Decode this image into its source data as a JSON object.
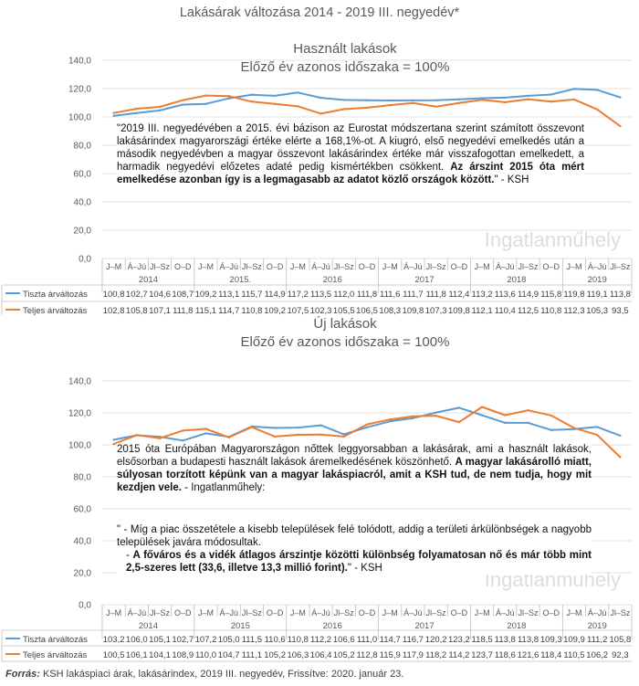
{
  "page_title": "Lakásárak változása 2014 - 2019 III. negyedév*",
  "source": {
    "label": "Forrás:",
    "text": " KSH lakáspiaci árak, lakásárindex, 2019 III. negyedév, Frissítve: 2020. január 23."
  },
  "watermark": "Ingatlanműhely",
  "colors": {
    "tiszta": "#5b9bd5",
    "teljes": "#ed7d31",
    "grid": "#d9d9d9",
    "text": "#595959"
  },
  "chart_data": [
    {
      "type": "line",
      "title": "Használt lakások",
      "subtitle": "Előző év azonos időszaka = 100%",
      "ylim": [
        0,
        140
      ],
      "yticks": [
        "0,0",
        "20,0",
        "40,0",
        "60,0",
        "80,0",
        "100,0",
        "120,0",
        "140,0"
      ],
      "grid": true,
      "legend": "table-left",
      "categories": [
        "J–M",
        "Á–Jú",
        "Jl–Sz",
        "O–D",
        "J–M",
        "Á–Jú",
        "Jl–Sz",
        "O–D",
        "J–M",
        "Á–Jú",
        "Jl–Sz",
        "O–D",
        "J–M",
        "Á–Jú",
        "Jl–Sz",
        "O–D",
        "J–M",
        "Á–Jú",
        "Jl–Sz",
        "O–D",
        "J–M",
        "Á–Jú",
        "Jl–Sz"
      ],
      "years": [
        "2014",
        "2015.",
        "2016",
        "2017",
        "2018",
        "2019"
      ],
      "series": [
        {
          "name": "Tiszta árváltozás",
          "values": [
            100.8,
            102.7,
            104.6,
            108.7,
            109.2,
            113.1,
            115.7,
            114.9,
            117.2,
            113.5,
            112.0,
            111.8,
            111.6,
            111.7,
            111.8,
            112.4,
            113.2,
            113.6,
            114.9,
            115.8,
            119.8,
            119.1,
            113.8
          ],
          "labels": [
            "100,8",
            "102,7",
            "104,6",
            "108,7",
            "109,2",
            "113,1",
            "115,7",
            "114,9",
            "117,2",
            "113,5",
            "112,0",
            "111,8",
            "111,6",
            "111,7",
            "111,8",
            "112,4",
            "113,2",
            "113,6",
            "114,9",
            "115,8",
            "119,8",
            "119,1",
            "113,8"
          ]
        },
        {
          "name": "Teljes árváltozás",
          "values": [
            102.8,
            105.8,
            107.1,
            111.8,
            115.1,
            114.7,
            110.8,
            109.2,
            107.5,
            102.3,
            105.5,
            106.5,
            108.3,
            109.8,
            107.3,
            109.8,
            112.1,
            110.4,
            112.5,
            110.8,
            112.3,
            105.3,
            93.5
          ],
          "labels": [
            "102,8",
            "105,8",
            "107,1",
            "111,8",
            "115,1",
            "114,7",
            "110,8",
            "109,2",
            "107,5",
            "102,3",
            "105,5",
            "106,5",
            "108,3",
            "109,8",
            "107,3",
            "109,8",
            "112,1",
            "110,4",
            "112,5",
            "110,8",
            "112,3",
            "105,3",
            "93,5"
          ]
        }
      ]
    },
    {
      "type": "line",
      "title": "Új lakások",
      "subtitle": "Előző év azonos időszaka = 100%",
      "ylim": [
        0,
        140
      ],
      "yticks": [
        "0,0",
        "20,0",
        "40,0",
        "60,0",
        "80,0",
        "100,0",
        "120,0",
        "140,0"
      ],
      "grid": true,
      "legend": "table-left",
      "categories": [
        "J–M",
        "Á–Jú",
        "Jl–Sz",
        "O–D",
        "J–M",
        "Á–Jú",
        "Jl–Sz",
        "O–D",
        "J–M",
        "Á–Jú",
        "Jl–Sz",
        "O–D",
        "J–M",
        "Á–Jú",
        "Jl–Sz",
        "O–D",
        "J–M",
        "Á–Jú",
        "Jl–Sz",
        "O–D",
        "J–M",
        "Á–Jú",
        "Jl–Sz"
      ],
      "years": [
        "2014",
        "2015",
        "2016",
        "2017",
        "2018",
        "2019"
      ],
      "series": [
        {
          "name": "Tiszta árváltozás",
          "values": [
            103.2,
            106.0,
            105.1,
            102.7,
            107.2,
            105.0,
            111.5,
            110.6,
            110.8,
            112.2,
            106.6,
            111.0,
            114.7,
            116.7,
            120.2,
            123.2,
            118.5,
            113.8,
            113.8,
            109.3,
            109.9,
            111.2,
            105.8
          ],
          "labels": [
            "103,2",
            "106,0",
            "105,1",
            "102,7",
            "107,2",
            "105,0",
            "111,5",
            "110,6",
            "110,8",
            "112,2",
            "106,6",
            "111,0",
            "114,7",
            "116,7",
            "120,2",
            "123,2",
            "118,5",
            "113,8",
            "113,8",
            "109,3",
            "109,9",
            "111,2",
            "105,8"
          ]
        },
        {
          "name": "Teljes árváltozás",
          "values": [
            100.5,
            106.1,
            104.1,
            108.9,
            110.0,
            104.7,
            111.1,
            105.2,
            106.3,
            106.4,
            105.2,
            112.8,
            115.9,
            117.9,
            118.2,
            114.2,
            123.7,
            118.6,
            121.6,
            118.4,
            110.5,
            106.2,
            92.3
          ],
          "labels": [
            "100,5",
            "106,1",
            "104,1",
            "108,9",
            "110,0",
            "104,7",
            "111,1",
            "105,2",
            "106,3",
            "106,4",
            "105,2",
            "112,8",
            "115,9",
            "117,9",
            "118,2",
            "114,2",
            "123,7",
            "118,6",
            "121,6",
            "118,4",
            "110,5",
            "106,2",
            "92,3"
          ]
        }
      ]
    }
  ],
  "notes": {
    "used": {
      "text": "\"2019 III. negyedévében a  2015. évi bázison az Eurostat módszertana szerint számított összevont lakásárindex magyarországi értéke elérte a 168,1%-ot. A kiugró, első negyedévi emelkedés után a második negyedévben  a magyar  összevont  lakásárindex  értéke már visszafogottan emelkedett, a harmadik negyedévi előzetes  adaté pedig kismértékben csökkent. ",
      "bold": "Az árszint 2015 óta mért emelkedése azonban így is a legmagasabb az adatot közlő országok között.",
      "tail": "\" - KSH"
    },
    "new1": {
      "text": "2015 óta Európában Magyarországon nőttek leggyorsabban a lakásárak, ami a használt lakások, elsősorban a budapesti használt lakások áremelkedésének köszönhető. ",
      "bold": "A magyar lakásárolló miatt, súlyosan torzított képünk van a magyar lakáspiacról, amit a KSH tud, de nem tudja, hogy mit kezdjen vele.",
      "tail": " - Ingatlanműhely:"
    },
    "new2": {
      "line1": "\" - Míg a piac összetétele a kisebb települések felé tolódott, addig a területi árkülönbségek a nagyobb települések javára módosultak.",
      "line2_prefix": " - ",
      "line2_bold": "A főváros és a vidék átlagos árszintje közötti különbség folyamatosan nő és már több mint 2,5-szeres lett (33,6, illetve 13,3 millió forint).",
      "line2_tail": "\" - KSH"
    }
  }
}
